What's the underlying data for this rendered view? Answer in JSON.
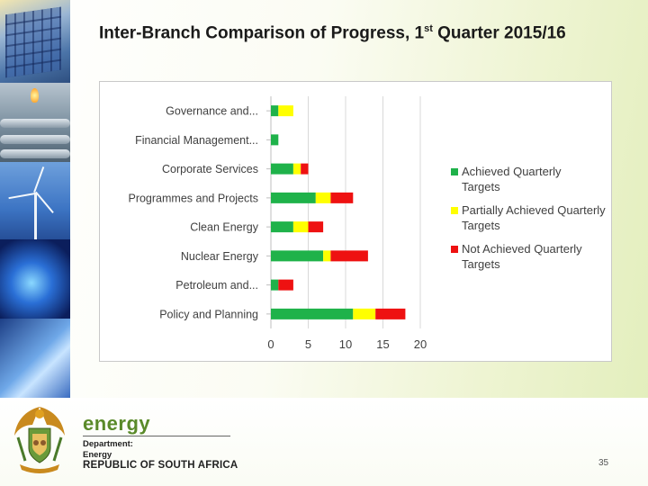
{
  "slide": {
    "title_main": "Inter-Branch Comparison of Progress, 1",
    "title_sup": "st",
    "title_rest": "  Quarter 2015/16",
    "page_number": "35"
  },
  "footer": {
    "brand_word": "energy",
    "dept_line1": "Department:",
    "dept_line2": "Energy",
    "country": "REPUBLIC OF SOUTH AFRICA"
  },
  "colors": {
    "achieved": "#1fb24a",
    "partial": "#ffff00",
    "not_achieved": "#ee1111",
    "gridline": "#d9d9d9",
    "axis_text": "#404040"
  },
  "chart_data": {
    "type": "bar",
    "orientation": "horizontal",
    "stacked": true,
    "title": "",
    "xlabel": "",
    "ylabel": "",
    "xlim": [
      0,
      20
    ],
    "xticks": [
      0,
      5,
      10,
      15,
      20
    ],
    "grid": true,
    "legend_position": "right",
    "categories": [
      "Governance and...",
      "Financial Management...",
      "Corporate Services",
      "Programmes and Projects",
      "Clean Energy",
      "Nuclear Energy",
      "Petroleum and...",
      "Policy and Planning"
    ],
    "series": [
      {
        "name": "Achieved Quarterly Targets",
        "values": [
          1,
          1,
          3,
          6,
          3,
          7,
          1,
          11
        ]
      },
      {
        "name": "Partially Achieved Quarterly Targets",
        "values": [
          2,
          0,
          1,
          2,
          2,
          1,
          0,
          3
        ]
      },
      {
        "name": "Not Achieved Quarterly Targets",
        "values": [
          0,
          0,
          1,
          3,
          2,
          5,
          2,
          4
        ]
      }
    ]
  }
}
